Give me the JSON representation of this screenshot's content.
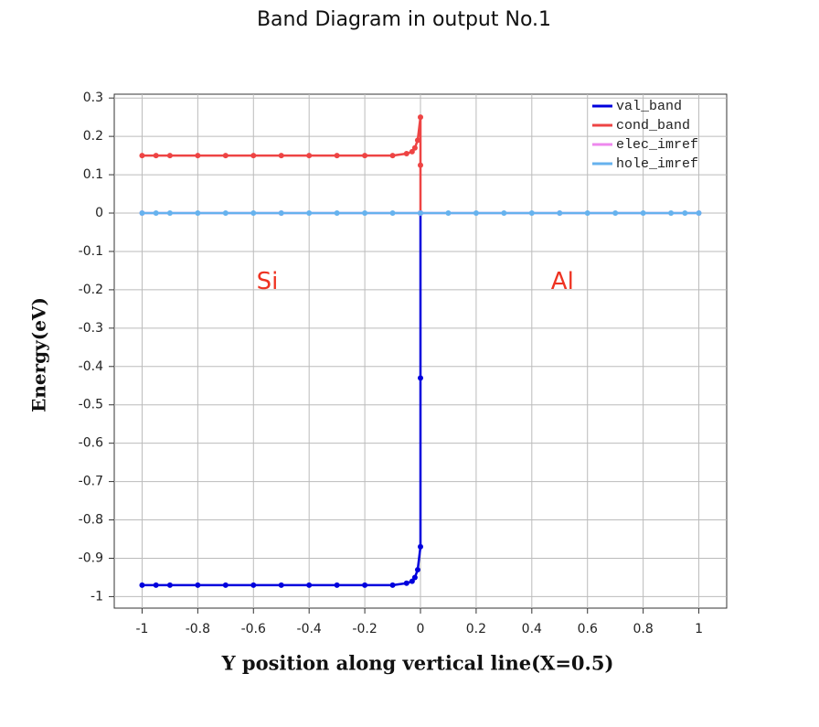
{
  "chart_data": {
    "type": "line",
    "title": "Band Diagram in output No.1",
    "x_label": "Y position along vertical line(X=0.5)",
    "y_label": "Energy(eV)",
    "annotations": [
      "Si",
      "Al"
    ],
    "xlim": [
      -1.1,
      1.1
    ],
    "ylim": [
      -1.03,
      0.31
    ],
    "xticks": [
      -1,
      -0.8,
      -0.6,
      -0.4,
      -0.2,
      0,
      0.2,
      0.4,
      0.6,
      0.8,
      1
    ],
    "yticks": [
      0.3,
      0.2,
      0.1,
      0,
      -0.1,
      -0.2,
      -0.3,
      -0.4,
      -0.5,
      -0.6,
      -0.7,
      -0.8,
      -0.9,
      -1
    ],
    "grid": true,
    "legend": "upper right",
    "series": [
      {
        "name": "val_band",
        "color": "#0000dd",
        "x": [
          -1,
          -0.95,
          -0.9,
          -0.8,
          -0.7,
          -0.6,
          -0.5,
          -0.4,
          -0.3,
          -0.2,
          -0.1,
          -0.05,
          -0.03,
          -0.02,
          -0.01,
          0,
          0,
          0
        ],
        "values": [
          -0.97,
          -0.97,
          -0.97,
          -0.97,
          -0.97,
          -0.97,
          -0.97,
          -0.97,
          -0.97,
          -0.97,
          -0.97,
          -0.965,
          -0.96,
          -0.95,
          -0.93,
          -0.87,
          -0.43,
          0
        ]
      },
      {
        "name": "cond_band",
        "color": "#ee4444",
        "x": [
          -1,
          -0.95,
          -0.9,
          -0.8,
          -0.7,
          -0.6,
          -0.5,
          -0.4,
          -0.3,
          -0.2,
          -0.1,
          -0.05,
          -0.03,
          -0.02,
          -0.01,
          0,
          0,
          0
        ],
        "values": [
          0.15,
          0.15,
          0.15,
          0.15,
          0.15,
          0.15,
          0.15,
          0.15,
          0.15,
          0.15,
          0.15,
          0.155,
          0.16,
          0.17,
          0.19,
          0.25,
          0.125,
          0
        ]
      },
      {
        "name": "elec_imref",
        "color": "#ee88ee",
        "x": [
          -1,
          -0.5,
          0,
          0.5,
          1
        ],
        "values": [
          0,
          0,
          0,
          0,
          0
        ]
      },
      {
        "name": "hole_imref",
        "color": "#66b2ee",
        "x": [
          -1,
          -0.95,
          -0.9,
          -0.8,
          -0.7,
          -0.6,
          -0.5,
          -0.4,
          -0.3,
          -0.2,
          -0.1,
          0,
          0.1,
          0.2,
          0.3,
          0.4,
          0.5,
          0.6,
          0.7,
          0.8,
          0.9,
          0.95,
          1
        ],
        "values": [
          0,
          0,
          0,
          0,
          0,
          0,
          0,
          0,
          0,
          0,
          0,
          0,
          0,
          0,
          0,
          0,
          0,
          0,
          0,
          0,
          0,
          0,
          0
        ]
      }
    ]
  }
}
